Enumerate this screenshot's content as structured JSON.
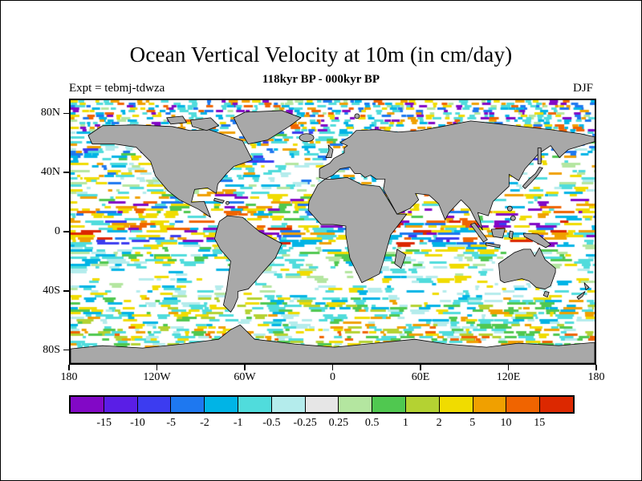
{
  "figure": {
    "title": "Ocean Vertical Velocity at 10m (in cm/day)",
    "subtitle": "118kyr BP - 000kyr BP",
    "experiment_label": "Expt = tebmj-tdwza",
    "season_label": "DJF"
  },
  "axes": {
    "lat_ticks": [
      {
        "label": "80N",
        "lat": 80
      },
      {
        "label": "40N",
        "lat": 40
      },
      {
        "label": "0",
        "lat": 0
      },
      {
        "label": "40S",
        "lat": -40
      },
      {
        "label": "80S",
        "lat": -80
      }
    ],
    "lon_ticks": [
      {
        "label": "180",
        "lon": -180
      },
      {
        "label": "120W",
        "lon": -120
      },
      {
        "label": "60W",
        "lon": -60
      },
      {
        "label": "0",
        "lon": 0
      },
      {
        "label": "60E",
        "lon": 60
      },
      {
        "label": "120E",
        "lon": 120
      },
      {
        "label": "180",
        "lon": 180
      }
    ]
  },
  "colorbar": {
    "labels": [
      "-15",
      "-10",
      "-5",
      "-2",
      "-1",
      "-0.5",
      "-0.25",
      "0.25",
      "0.5",
      "1",
      "2",
      "5",
      "10",
      "15"
    ],
    "colors": [
      "#8208c6",
      "#5a1ee6",
      "#3c3cf0",
      "#1e78f0",
      "#00b4e6",
      "#50dcdc",
      "#b4ecec",
      "#e6e6e6",
      "#b4e6a0",
      "#50c850",
      "#b4d232",
      "#f0dc00",
      "#f0a000",
      "#f06400",
      "#dc2800"
    ]
  },
  "map": {
    "land_color": "#a8a8a8",
    "coast_color": "#000000",
    "frame_color": "#000000",
    "ocean_base": "#ffffff"
  },
  "chart_data": {
    "type": "heatmap",
    "title": "Ocean Vertical Velocity at 10m (in cm/day)",
    "subtitle": "118kyr BP - 000kyr BP",
    "experiment": "tebmj-tdwza",
    "season": "DJF",
    "units": "cm/day",
    "projection": "equirectangular",
    "lon_range": [
      -180,
      180
    ],
    "lat_range": [
      -90,
      90
    ],
    "x_tick_labels": [
      "180",
      "120W",
      "60W",
      "0",
      "60E",
      "120E",
      "180"
    ],
    "y_tick_labels": [
      "80N",
      "40N",
      "0",
      "40S",
      "80S"
    ],
    "contour_levels": [
      -15,
      -10,
      -5,
      -2,
      -1,
      -0.5,
      -0.25,
      0.25,
      0.5,
      1,
      2,
      5,
      10,
      15
    ],
    "palette": [
      "#8208c6",
      "#5a1ee6",
      "#3c3cf0",
      "#1e78f0",
      "#00b4e6",
      "#50dcdc",
      "#b4ecec",
      "#e6e6e6",
      "#b4e6a0",
      "#50c850",
      "#b4d232",
      "#f0dc00",
      "#f0a000",
      "#f06400",
      "#dc2800"
    ],
    "legend_position": "bottom",
    "description": "Difference field (118kyr BP minus 000kyr BP) of ocean vertical velocity at 10 m depth; noisy zonal bands of positive (yellow-red) and negative (cyan-blue) anomalies over the world ocean, land masses shown in gray"
  }
}
